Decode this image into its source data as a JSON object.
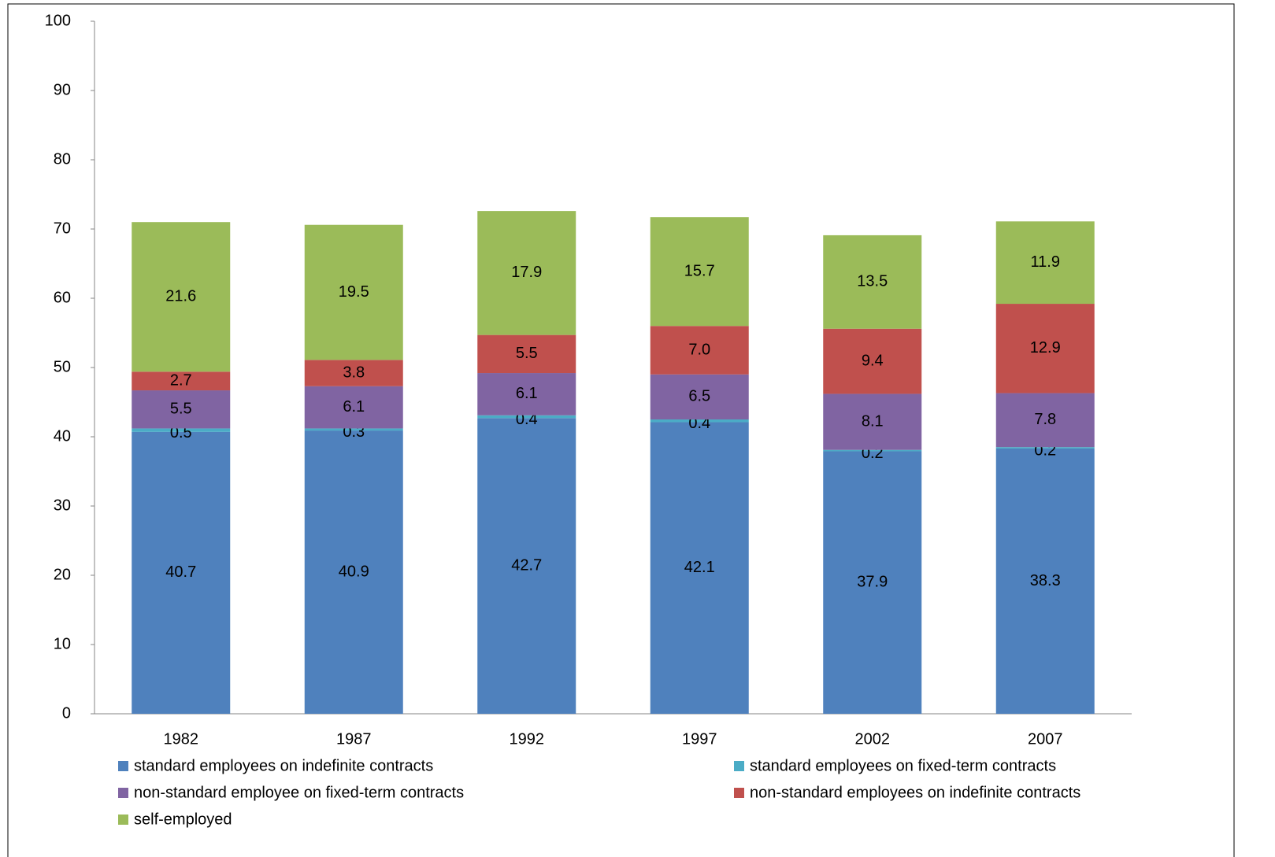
{
  "chart_data": {
    "type": "stacked-bar",
    "categories": [
      "1982",
      "1987",
      "1992",
      "1997",
      "2002",
      "2007"
    ],
    "series": [
      {
        "name": "standard employees on indefinite contracts",
        "color": "#4f81bd",
        "values": [
          40.7,
          40.9,
          42.7,
          42.1,
          37.9,
          38.3
        ]
      },
      {
        "name": "standard employees on fixed-term contracts",
        "color": "#4bacc6",
        "values": [
          0.5,
          0.3,
          0.4,
          0.4,
          0.2,
          0.2
        ]
      },
      {
        "name": "non-standard employee on fixed-term contracts",
        "color": "#8064a2",
        "values": [
          5.5,
          6.1,
          6.1,
          6.5,
          8.1,
          7.8
        ]
      },
      {
        "name": "non-standard employees on indefinite contracts",
        "color": "#c0504d",
        "values": [
          2.7,
          3.8,
          5.5,
          7.0,
          9.4,
          12.9
        ],
        "value_labels": [
          "2.7",
          "3.8",
          "5.5",
          "7.0",
          "9.4",
          "12.9"
        ]
      },
      {
        "name": "self-employed",
        "color": "#9bbb59",
        "values": [
          21.6,
          19.5,
          17.9,
          15.7,
          13.5,
          11.9
        ]
      }
    ],
    "ylim": [
      0,
      100
    ],
    "yticks": [
      0,
      10,
      20,
      30,
      40,
      50,
      60,
      70,
      80,
      90,
      100
    ],
    "grid": false,
    "legend": "bottom"
  }
}
